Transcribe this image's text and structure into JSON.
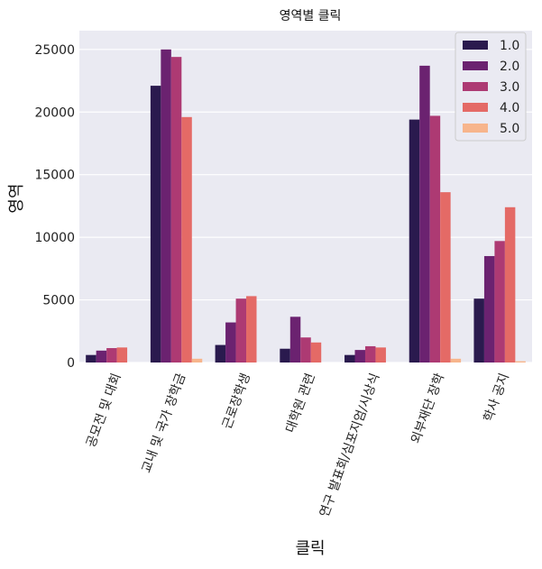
{
  "chart_data": {
    "type": "bar",
    "title": "영역별 클릭",
    "xlabel": "클릭",
    "ylabel": "영역",
    "ylim": [
      0,
      26500
    ],
    "yticks": [
      0,
      5000,
      10000,
      15000,
      20000,
      25000
    ],
    "grid": true,
    "legend_position": "top-right",
    "categories": [
      "공모전 및 대회",
      "교내 및 국가 장학금",
      "근로장학생",
      "대학원 관련",
      "연구 발표회/심포지엄/시상식",
      "외부재단 장학",
      "학사 공지"
    ],
    "series": [
      {
        "name": "1.0",
        "color": "#2a1a4e",
        "values": [
          600,
          22100,
          1400,
          1100,
          600,
          19400,
          5100
        ]
      },
      {
        "name": "2.0",
        "color": "#6b2270",
        "values": [
          950,
          25000,
          3200,
          3650,
          1000,
          23700,
          8500
        ]
      },
      {
        "name": "3.0",
        "color": "#ad3a73",
        "values": [
          1150,
          24400,
          5100,
          2000,
          1300,
          19700,
          9700
        ]
      },
      {
        "name": "4.0",
        "color": "#e46a66",
        "values": [
          1200,
          19600,
          5300,
          1600,
          1200,
          13600,
          12400
        ]
      },
      {
        "name": "5.0",
        "color": "#f7b58c",
        "values": [
          0,
          300,
          0,
          0,
          0,
          300,
          100
        ]
      }
    ]
  }
}
